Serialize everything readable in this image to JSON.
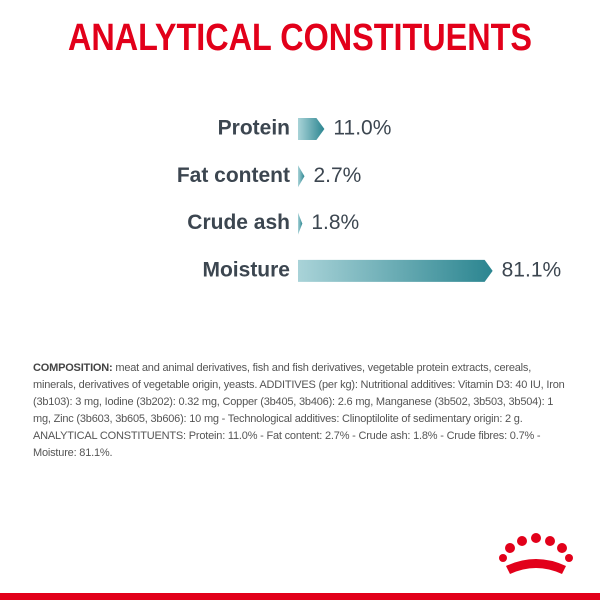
{
  "chart_data": {
    "type": "bar",
    "orientation": "horizontal",
    "title": "ANALYTICAL CONSTITUENTS",
    "categories": [
      "Protein",
      "Fat content",
      "Crude ash",
      "Moisture"
    ],
    "values": [
      11.0,
      2.7,
      1.8,
      81.1
    ],
    "value_labels": [
      "11.0%",
      "2.7%",
      "1.8%",
      "81.1%"
    ],
    "color": "#2b8590"
  },
  "composition": {
    "label": "COMPOSITION:",
    "text": "meat and animal derivatives, fish and fish derivatives, vegetable protein extracts, cereals, minerals, derivatives of vegetable origin, yeasts. ADDITIVES (per kg): Nutritional additives: Vitamin D3: 40 IU, Iron (3b103): 3 mg, Iodine (3b202): 0.32 mg, Copper (3b405, 3b406): 2.6 mg, Manganese (3b502, 3b503, 3b504): 1 mg, Zinc (3b603, 3b605, 3b606): 10 mg - Technological additives: Clinoptilolite of sedimentary origin: 2 g. ANALYTICAL CONSTITUENTS: Protein: 11.0% - Fat content: 2.7% - Crude ash: 1.8% - Crude fibres: 0.7% - Moisture: 81.1%."
  }
}
